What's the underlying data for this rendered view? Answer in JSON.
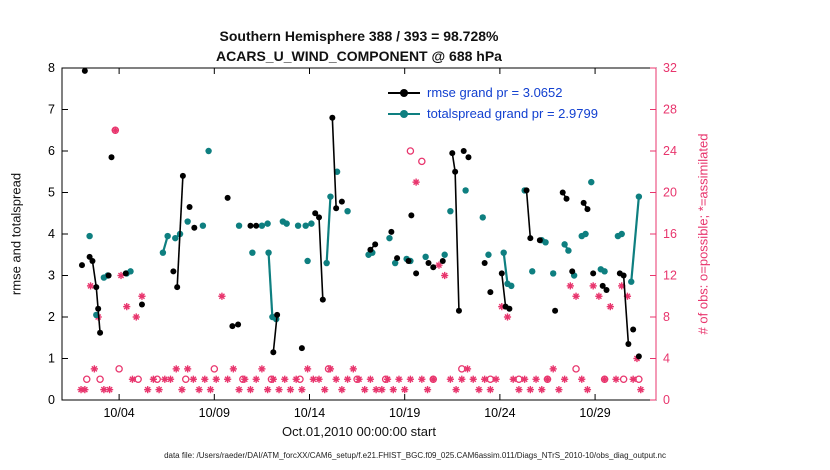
{
  "caption": "data file: /Users/raeder/DAI/ATM_forcXX/CAM6_setup/f.e21.FHIST_BGC.f09_025.CAM6assim.011/Diags_NTrS_2010-10/obs_diag_output.nc",
  "chart_data": {
    "type": "scatter",
    "title": "Southern Hemisphere 388 / 393 = 98.728%",
    "subtitle": "ACARS_U_WIND_COMPONENT @ 688 hPa",
    "xlabel": "Oct.01,2010 00:00:00 start",
    "ylabel_left": "rmse and totalspread",
    "ylabel_right": "# of obs: o=possible; *=assimilated",
    "x_domain": [
      1,
      32.2
    ],
    "ylim_left": [
      0,
      8
    ],
    "ylim_right": [
      0,
      32
    ],
    "yticks_left": [
      0,
      1,
      2,
      3,
      4,
      5,
      6,
      7,
      8
    ],
    "yticks_right": [
      0,
      4,
      8,
      12,
      16,
      20,
      24,
      28,
      32
    ],
    "xticks": [
      {
        "day": 4,
        "label": "10/04"
      },
      {
        "day": 9,
        "label": "10/09"
      },
      {
        "day": 14,
        "label": "10/14"
      },
      {
        "day": 19,
        "label": "10/19"
      },
      {
        "day": 24,
        "label": "10/24"
      },
      {
        "day": 29,
        "label": "10/29"
      }
    ],
    "legend": [
      {
        "label": "rmse grand pr = 3.0652",
        "series": "rmse"
      },
      {
        "label": "totalspread grand pr = 2.9799",
        "series": "totalspread"
      }
    ],
    "colors": {
      "rmse": "#000000",
      "totalspread": "#0e7f80",
      "obs": "#e8356d",
      "legend_text": "#1240d0",
      "axis": "#000000"
    },
    "series": {
      "rmse_segments": [
        [
          [
            2.2,
            7.93
          ]
        ],
        [
          [
            2.05,
            3.25
          ]
        ],
        [
          [
            2.45,
            3.45
          ],
          [
            2.6,
            3.35
          ],
          [
            2.8,
            2.72
          ],
          [
            3.0,
            1.62
          ]
        ],
        [
          [
            2.9,
            2.2
          ]
        ],
        [
          [
            3.45,
            3.0
          ]
        ],
        [
          [
            3.6,
            5.85
          ]
        ],
        [
          [
            4.35,
            3.05
          ]
        ],
        [
          [
            5.2,
            2.3
          ]
        ],
        [
          [
            6.85,
            3.1
          ]
        ],
        [
          [
            7.05,
            2.72
          ],
          [
            7.35,
            5.4
          ]
        ],
        [
          [
            7.7,
            4.65
          ]
        ],
        [
          [
            7.95,
            4.15
          ]
        ],
        [
          [
            9.7,
            4.87
          ]
        ],
        [
          [
            9.95,
            1.78
          ],
          [
            10.25,
            1.82
          ]
        ],
        [
          [
            10.9,
            4.2
          ],
          [
            11.2,
            4.2
          ]
        ],
        [
          [
            12.1,
            1.15
          ],
          [
            12.3,
            2.05
          ]
        ],
        [
          [
            13.6,
            1.25
          ]
        ],
        [
          [
            14.3,
            4.5
          ],
          [
            14.5,
            4.4
          ],
          [
            14.7,
            2.42
          ]
        ],
        [
          [
            15.2,
            6.8
          ],
          [
            15.4,
            4.62
          ]
        ],
        [
          [
            15.7,
            4.78
          ]
        ],
        [
          [
            17.2,
            3.62
          ],
          [
            17.45,
            3.75
          ]
        ],
        [
          [
            18.3,
            4.05
          ]
        ],
        [
          [
            18.6,
            3.42
          ]
        ],
        [
          [
            19.2,
            3.35
          ]
        ],
        [
          [
            19.35,
            4.45
          ]
        ],
        [
          [
            19.6,
            3.05
          ]
        ],
        [
          [
            20.25,
            3.3
          ]
        ],
        [
          [
            20.5,
            3.2
          ]
        ],
        [
          [
            21.0,
            3.35
          ]
        ],
        [
          [
            21.5,
            5.95
          ],
          [
            21.65,
            5.5
          ],
          [
            21.85,
            2.15
          ]
        ],
        [
          [
            22.1,
            6.0
          ]
        ],
        [
          [
            22.35,
            5.85
          ]
        ],
        [
          [
            23.2,
            3.3
          ]
        ],
        [
          [
            23.5,
            2.6
          ]
        ],
        [
          [
            24.1,
            3.05
          ],
          [
            24.3,
            2.25
          ],
          [
            24.5,
            2.2
          ]
        ],
        [
          [
            25.4,
            5.05
          ],
          [
            25.6,
            3.9
          ]
        ],
        [
          [
            26.1,
            3.85
          ]
        ],
        [
          [
            26.9,
            2.15
          ]
        ],
        [
          [
            27.3,
            5.0
          ],
          [
            27.5,
            4.85
          ]
        ],
        [
          [
            27.8,
            3.1
          ]
        ],
        [
          [
            28.4,
            4.75
          ],
          [
            28.6,
            4.6
          ]
        ],
        [
          [
            28.9,
            3.05
          ]
        ],
        [
          [
            29.4,
            2.75
          ],
          [
            29.6,
            2.65
          ]
        ],
        [
          [
            30.3,
            3.05
          ],
          [
            30.5,
            3.0
          ],
          [
            30.75,
            1.35
          ]
        ],
        [
          [
            31.0,
            1.7
          ]
        ],
        [
          [
            31.3,
            1.05
          ]
        ]
      ],
      "totalspread_segments": [
        [
          [
            2.45,
            3.95
          ]
        ],
        [
          [
            2.8,
            2.05
          ]
        ],
        [
          [
            3.2,
            2.95
          ],
          [
            3.4,
            3.0
          ]
        ],
        [
          [
            4.4,
            3.05
          ],
          [
            4.6,
            3.1
          ]
        ],
        [
          [
            6.3,
            3.55
          ],
          [
            6.55,
            3.95
          ]
        ],
        [
          [
            6.95,
            3.9
          ],
          [
            7.2,
            4.0
          ]
        ],
        [
          [
            7.6,
            4.3
          ]
        ],
        [
          [
            8.4,
            4.2
          ]
        ],
        [
          [
            8.7,
            6.0
          ]
        ],
        [
          [
            10.3,
            4.2
          ]
        ],
        [
          [
            11.0,
            3.55
          ]
        ],
        [
          [
            11.5,
            4.2
          ],
          [
            11.8,
            4.25
          ]
        ],
        [
          [
            11.85,
            3.55
          ],
          [
            12.05,
            2.0
          ]
        ],
        [
          [
            12.25,
            1.95
          ]
        ],
        [
          [
            12.6,
            4.3
          ],
          [
            12.8,
            4.25
          ]
        ],
        [
          [
            13.4,
            4.2
          ]
        ],
        [
          [
            13.8,
            4.2
          ],
          [
            14.1,
            4.25
          ]
        ],
        [
          [
            13.9,
            3.35
          ]
        ],
        [
          [
            14.9,
            3.3
          ],
          [
            15.1,
            4.9
          ]
        ],
        [
          [
            15.45,
            5.5
          ]
        ],
        [
          [
            16.0,
            4.55
          ]
        ],
        [
          [
            17.1,
            3.5
          ],
          [
            17.3,
            3.55
          ]
        ],
        [
          [
            18.2,
            3.9
          ]
        ],
        [
          [
            18.5,
            3.3
          ]
        ],
        [
          [
            19.1,
            3.4
          ],
          [
            19.3,
            3.35
          ]
        ],
        [
          [
            20.1,
            3.45
          ]
        ],
        [
          [
            21.1,
            3.5
          ]
        ],
        [
          [
            21.4,
            4.55
          ]
        ],
        [
          [
            22.2,
            5.05
          ]
        ],
        [
          [
            23.1,
            4.4
          ]
        ],
        [
          [
            23.4,
            3.5
          ]
        ],
        [
          [
            24.2,
            3.55
          ],
          [
            24.4,
            2.8
          ],
          [
            24.6,
            2.75
          ]
        ],
        [
          [
            25.3,
            5.05
          ]
        ],
        [
          [
            25.7,
            3.1
          ]
        ],
        [
          [
            26.2,
            3.85
          ],
          [
            26.4,
            3.8
          ]
        ],
        [
          [
            26.8,
            3.05
          ]
        ],
        [
          [
            27.4,
            3.75
          ],
          [
            27.6,
            3.6
          ]
        ],
        [
          [
            27.9,
            3.0
          ]
        ],
        [
          [
            28.3,
            3.95
          ],
          [
            28.5,
            4.0
          ]
        ],
        [
          [
            28.8,
            5.25
          ]
        ],
        [
          [
            29.3,
            3.15
          ],
          [
            29.5,
            3.1
          ]
        ],
        [
          [
            30.2,
            3.95
          ],
          [
            30.4,
            4.0
          ]
        ],
        [
          [
            30.9,
            2.85
          ],
          [
            31.3,
            4.9
          ]
        ]
      ],
      "obs_possible": [
        [
          2.3,
          2
        ],
        [
          3.0,
          2
        ],
        [
          3.8,
          26
        ],
        [
          4.0,
          3
        ],
        [
          5.0,
          2
        ],
        [
          6.0,
          2
        ],
        [
          7.5,
          2
        ],
        [
          9.0,
          3
        ],
        [
          10.5,
          2
        ],
        [
          12.0,
          2
        ],
        [
          13.5,
          2
        ],
        [
          15.0,
          3
        ],
        [
          16.5,
          2
        ],
        [
          18.0,
          2
        ],
        [
          19.3,
          24
        ],
        [
          19.9,
          23
        ],
        [
          20.5,
          2
        ],
        [
          22.0,
          3
        ],
        [
          23.5,
          2
        ],
        [
          25.0,
          2
        ],
        [
          26.5,
          2
        ],
        [
          28.0,
          3
        ],
        [
          29.5,
          2
        ],
        [
          30.5,
          2
        ],
        [
          31.3,
          2
        ]
      ],
      "obs_assimilated": [
        [
          2.0,
          1
        ],
        [
          2.2,
          1
        ],
        [
          2.5,
          11
        ],
        [
          2.7,
          3
        ],
        [
          2.9,
          8
        ],
        [
          3.2,
          1
        ],
        [
          3.5,
          1
        ],
        [
          3.8,
          26
        ],
        [
          4.1,
          12
        ],
        [
          4.4,
          9
        ],
        [
          4.7,
          2
        ],
        [
          4.9,
          8
        ],
        [
          5.2,
          10
        ],
        [
          5.5,
          1
        ],
        [
          5.8,
          2
        ],
        [
          6.1,
          1
        ],
        [
          6.4,
          2
        ],
        [
          6.7,
          2
        ],
        [
          7.0,
          3
        ],
        [
          7.3,
          1
        ],
        [
          7.6,
          3
        ],
        [
          7.9,
          2
        ],
        [
          8.2,
          1
        ],
        [
          8.5,
          2
        ],
        [
          8.8,
          1
        ],
        [
          9.1,
          2
        ],
        [
          9.4,
          10
        ],
        [
          9.7,
          2
        ],
        [
          10.0,
          3
        ],
        [
          10.3,
          1
        ],
        [
          10.6,
          2
        ],
        [
          10.9,
          1
        ],
        [
          11.2,
          2
        ],
        [
          11.5,
          3
        ],
        [
          11.8,
          1
        ],
        [
          12.1,
          2
        ],
        [
          12.4,
          1
        ],
        [
          12.7,
          2
        ],
        [
          13.0,
          1
        ],
        [
          13.3,
          2
        ],
        [
          13.6,
          1
        ],
        [
          13.9,
          3
        ],
        [
          14.2,
          2
        ],
        [
          14.5,
          2
        ],
        [
          14.8,
          1
        ],
        [
          15.1,
          3
        ],
        [
          15.4,
          2
        ],
        [
          15.7,
          1
        ],
        [
          16.0,
          2
        ],
        [
          16.3,
          3
        ],
        [
          16.6,
          2
        ],
        [
          16.9,
          1
        ],
        [
          17.2,
          2
        ],
        [
          17.5,
          1
        ],
        [
          17.8,
          1
        ],
        [
          18.1,
          2
        ],
        [
          18.4,
          1
        ],
        [
          18.7,
          2
        ],
        [
          19.0,
          1
        ],
        [
          19.3,
          2
        ],
        [
          19.6,
          21
        ],
        [
          19.9,
          2
        ],
        [
          20.2,
          1
        ],
        [
          20.5,
          2
        ],
        [
          20.8,
          13
        ],
        [
          21.1,
          12
        ],
        [
          21.4,
          2
        ],
        [
          21.7,
          1
        ],
        [
          22.0,
          2
        ],
        [
          22.3,
          3
        ],
        [
          22.6,
          2
        ],
        [
          22.9,
          1
        ],
        [
          23.2,
          2
        ],
        [
          23.5,
          1
        ],
        [
          23.8,
          2
        ],
        [
          24.1,
          9
        ],
        [
          24.4,
          8
        ],
        [
          24.7,
          2
        ],
        [
          25.0,
          1
        ],
        [
          25.3,
          2
        ],
        [
          25.6,
          1
        ],
        [
          25.9,
          2
        ],
        [
          26.2,
          1
        ],
        [
          26.5,
          2
        ],
        [
          26.8,
          3
        ],
        [
          27.1,
          1
        ],
        [
          27.4,
          2
        ],
        [
          27.7,
          11
        ],
        [
          28.0,
          10
        ],
        [
          28.3,
          2
        ],
        [
          28.6,
          1
        ],
        [
          28.9,
          11
        ],
        [
          29.2,
          10
        ],
        [
          29.5,
          2
        ],
        [
          29.8,
          9
        ],
        [
          30.1,
          2
        ],
        [
          30.4,
          11
        ],
        [
          30.7,
          10
        ],
        [
          31.0,
          2
        ],
        [
          31.2,
          4
        ],
        [
          31.4,
          1
        ]
      ]
    }
  }
}
